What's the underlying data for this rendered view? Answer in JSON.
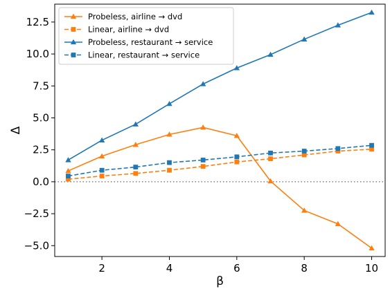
{
  "chart_data": {
    "type": "line",
    "xlabel": "β",
    "ylabel": "Δ",
    "xlim": [
      0.6,
      10.4
    ],
    "ylim": [
      -5.85,
      13.9
    ],
    "x_ticks": [
      2,
      4,
      6,
      8,
      10
    ],
    "y_ticks": [
      -5.0,
      -2.5,
      0.0,
      2.5,
      5.0,
      7.5,
      10.0,
      12.5
    ],
    "x_tick_labels": [
      "2",
      "4",
      "6",
      "8",
      "10"
    ],
    "y_tick_labels": [
      "−5.0",
      "−2.5",
      "0.0",
      "2.5",
      "5.0",
      "7.5",
      "10.0",
      "12.5"
    ],
    "grid": false,
    "reference_line": {
      "y": 0,
      "style": "dotted",
      "color": "#808080"
    },
    "legend_position": "top-left",
    "x": [
      1,
      2,
      3,
      4,
      5,
      6,
      7,
      8,
      9,
      10
    ],
    "series": [
      {
        "name": "Probeless, airline → dvd",
        "color": "#ff7f0e",
        "dash": "solid",
        "marker": "triangle",
        "values": [
          0.85,
          2.0,
          2.9,
          3.7,
          4.25,
          3.6,
          0.05,
          -2.25,
          -3.3,
          -5.2
        ]
      },
      {
        "name": "Linear, airline → dvd",
        "color": "#ff7f0e",
        "dash": "dashed",
        "marker": "square",
        "values": [
          0.2,
          0.45,
          0.65,
          0.9,
          1.2,
          1.55,
          1.8,
          2.1,
          2.4,
          2.55
        ]
      },
      {
        "name": "Probeless, restaurant → service",
        "color": "#1f77b4",
        "dash": "solid",
        "marker": "triangle",
        "values": [
          1.7,
          3.25,
          4.5,
          6.1,
          7.65,
          8.9,
          9.95,
          11.15,
          12.25,
          13.25
        ]
      },
      {
        "name": "Linear, restaurant → service",
        "color": "#1f77b4",
        "dash": "dashed",
        "marker": "square",
        "values": [
          0.45,
          0.9,
          1.15,
          1.5,
          1.7,
          1.95,
          2.25,
          2.4,
          2.6,
          2.85
        ]
      }
    ]
  }
}
